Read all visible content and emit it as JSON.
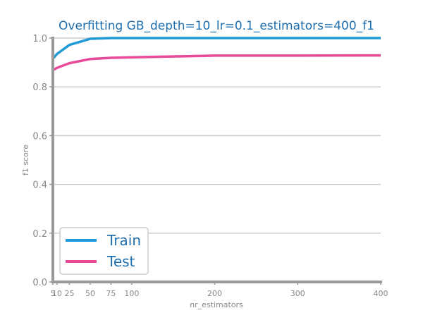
{
  "colors": {
    "title": "#1f6faf",
    "axis": "#999999",
    "grid": "#cccccc",
    "tick_label": "#888888",
    "legend_text": "#1f6faf",
    "legend_border": "#cccccc"
  },
  "chart_data": {
    "type": "line",
    "title": "Overfitting GB_depth=10_lr=0.1_estimators=400_f1",
    "xlabel": "nr_estimators",
    "ylabel": "f1 score",
    "xlim": [
      5,
      400
    ],
    "ylim": [
      0.0,
      1.0
    ],
    "x": [
      5,
      10,
      25,
      50,
      75,
      100,
      200,
      300,
      400
    ],
    "x_tick_labels": [
      "5",
      "10",
      "25",
      "50",
      "75",
      "100",
      "200",
      "300",
      "400"
    ],
    "y_ticks": [
      0.0,
      0.2,
      0.4,
      0.6,
      0.8,
      1.0
    ],
    "y_tick_labels": [
      "0.0",
      "0.2",
      "0.4",
      "0.6",
      "0.8",
      "1.0"
    ],
    "grid": "horizontal",
    "legend_position": "lower-left",
    "series": [
      {
        "name": "Train",
        "color": "#1f9ad6",
        "values": [
          0.915,
          0.935,
          0.972,
          0.997,
          1.0,
          1.0,
          1.0,
          1.0,
          1.0
        ]
      },
      {
        "name": "Test",
        "color": "#e84a9a",
        "values": [
          0.868,
          0.878,
          0.897,
          0.914,
          0.919,
          0.921,
          0.928,
          0.928,
          0.929
        ]
      }
    ]
  }
}
